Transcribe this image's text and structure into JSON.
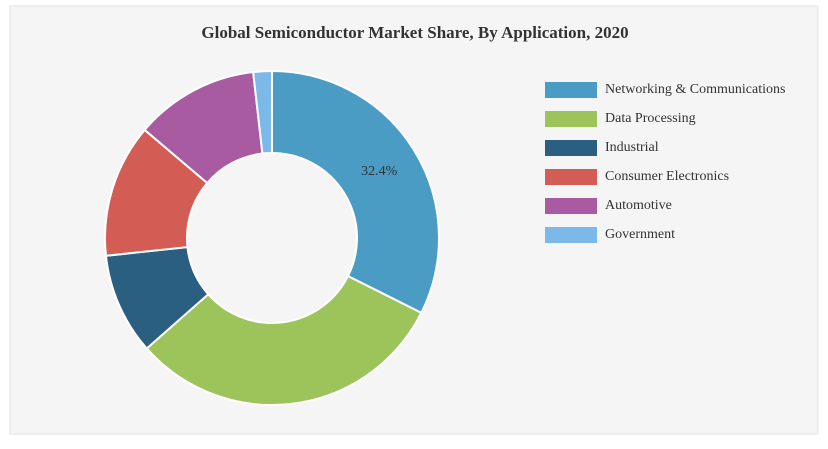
{
  "chart_data": {
    "type": "donut",
    "title": "Global Semiconductor Market Share, By Application, 2020",
    "categories": [
      "Networking & Communications",
      "Data Processing",
      "Industrial",
      "Consumer Electronics",
      "Automotive",
      "Government"
    ],
    "values": [
      32.4,
      31.1,
      9.8,
      12.9,
      12.0,
      1.8
    ],
    "value_labels": [
      "32.4%",
      null,
      null,
      null,
      null,
      null
    ],
    "colors": [
      "#4a9cc4",
      "#9dc45a",
      "#2b5f82",
      "#d35d54",
      "#a95ba1",
      "#7db9e8"
    ],
    "legend": "right"
  }
}
